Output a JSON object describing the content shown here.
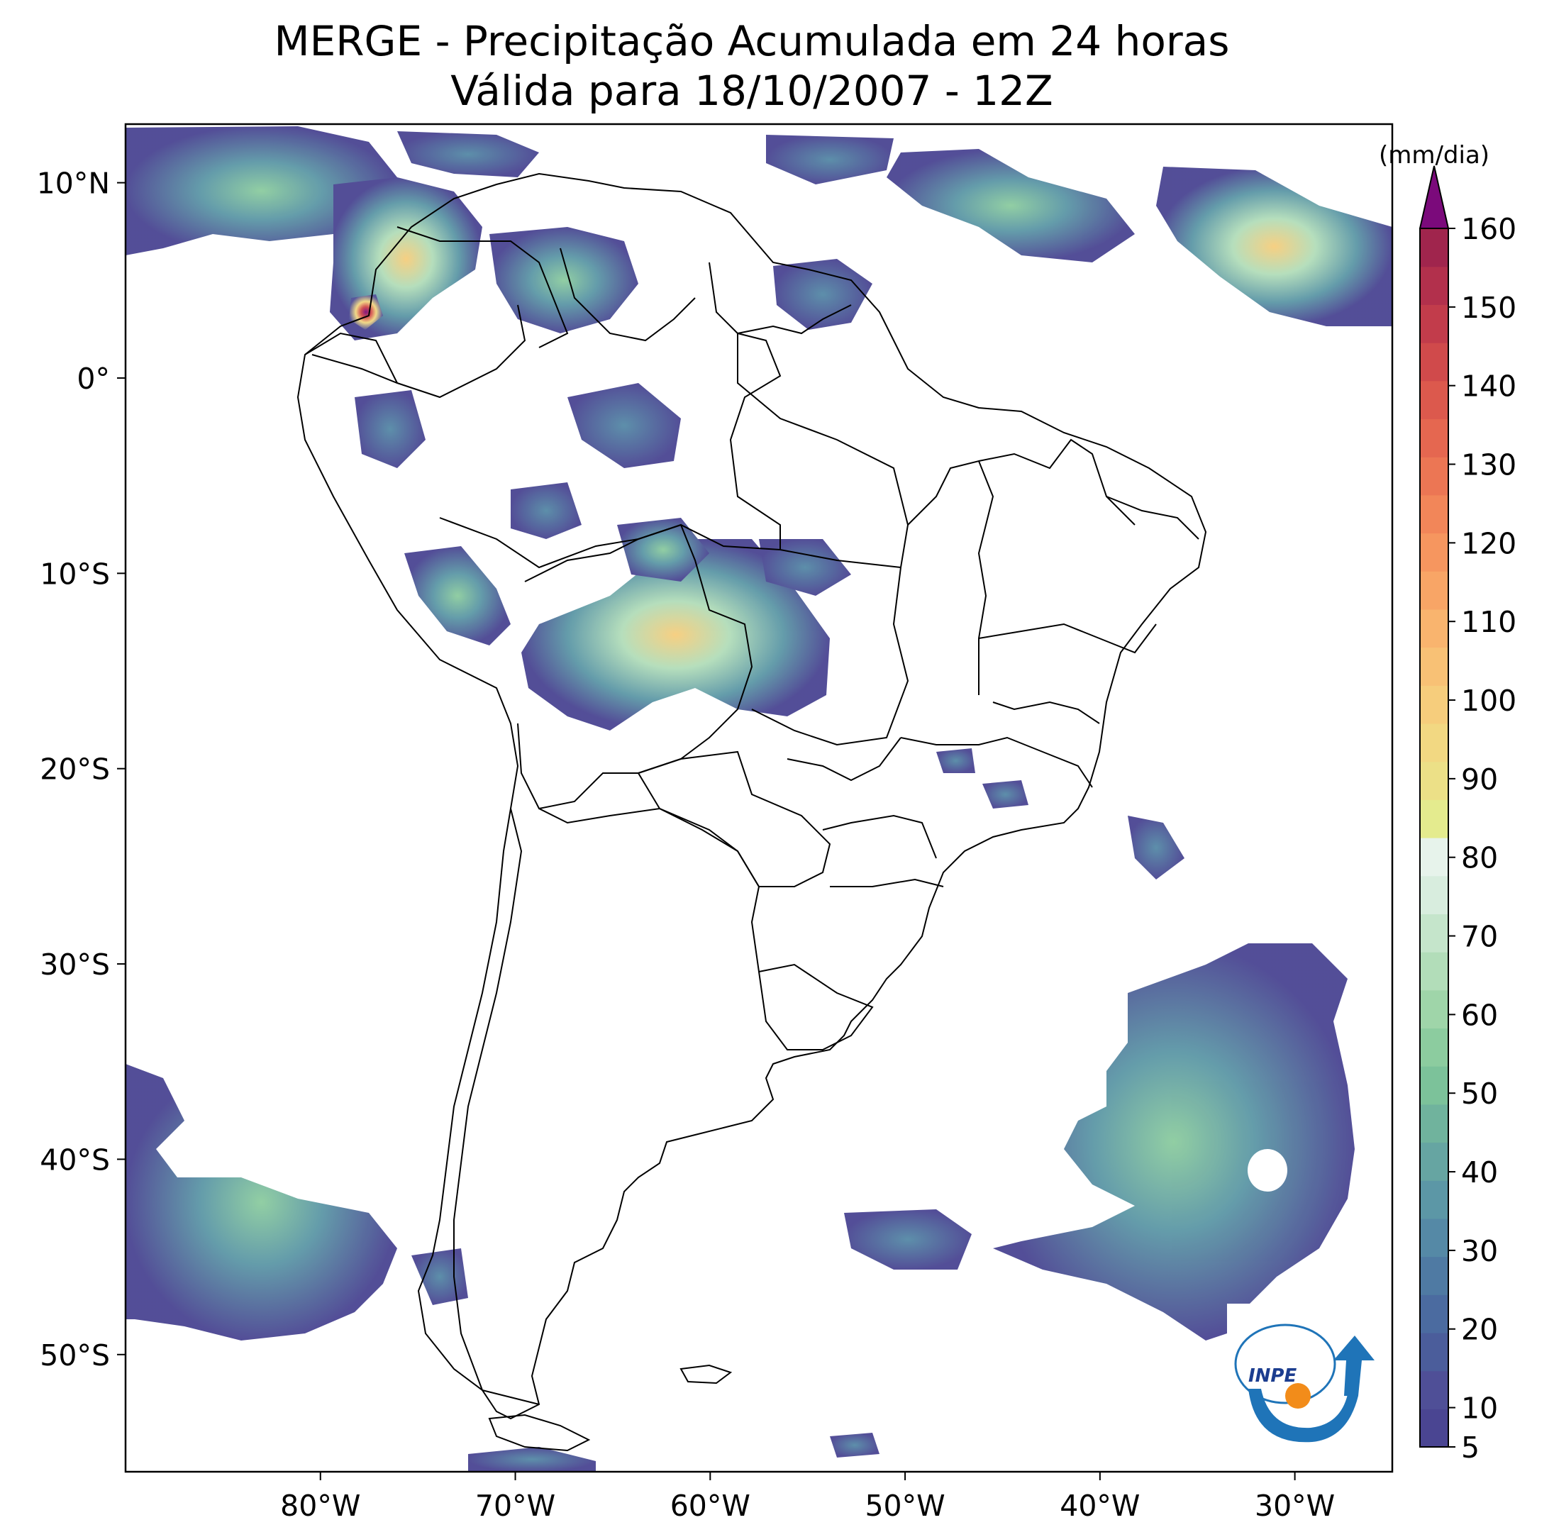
{
  "title": {
    "line1": "MERGE - Precipitação Acumulada em 24 horas",
    "line2": "Válida para 18/10/2007 - 12Z"
  },
  "axes": {
    "lon_min": -90,
    "lon_max": -25,
    "lat_min": -56,
    "lat_max": 13,
    "lon_ticks": [
      {
        "value": -80,
        "label": "80°W"
      },
      {
        "value": -70,
        "label": "70°W"
      },
      {
        "value": -60,
        "label": "60°W"
      },
      {
        "value": -50,
        "label": "50°W"
      },
      {
        "value": -40,
        "label": "40°W"
      },
      {
        "value": -30,
        "label": "30°W"
      }
    ],
    "lat_ticks": [
      {
        "value": 10,
        "label": "10°N"
      },
      {
        "value": 0,
        "label": "0°"
      },
      {
        "value": -10,
        "label": "10°S"
      },
      {
        "value": -20,
        "label": "20°S"
      },
      {
        "value": -30,
        "label": "30°S"
      },
      {
        "value": -40,
        "label": "40°S"
      },
      {
        "value": -50,
        "label": "50°S"
      }
    ]
  },
  "colorbar": {
    "unit": "(mm/dia)",
    "min": 5,
    "max": 160,
    "tick_labels": [
      "5",
      "10",
      "20",
      "30",
      "40",
      "50",
      "60",
      "70",
      "80",
      "90",
      "100",
      "110",
      "120",
      "130",
      "140",
      "150",
      "160"
    ],
    "tick_values": [
      5,
      10,
      20,
      30,
      40,
      50,
      60,
      70,
      80,
      90,
      100,
      110,
      120,
      130,
      140,
      150,
      160
    ],
    "extend_color": "#7b0a7b",
    "colors": [
      "#4a4592",
      "#4f4f97",
      "#4b5d9b",
      "#4b6ba0",
      "#4f7aa3",
      "#5589a6",
      "#5c97a6",
      "#66a5a2",
      "#70b39d",
      "#7cc29a",
      "#8ccc9f",
      "#9fd5a9",
      "#b2ddb9",
      "#c5e5cb",
      "#d8edde",
      "#e7f3eb",
      "#e4eb8e",
      "#ece087",
      "#f2d882",
      "#f6cd7c",
      "#f8c175",
      "#f9b46e",
      "#f8a566",
      "#f6965f",
      "#f28659",
      "#ec7654",
      "#e56750",
      "#dc594d",
      "#d04a4b",
      "#c23c4b",
      "#b2304c",
      "#a0254d"
    ]
  },
  "logo": {
    "text": "INPE",
    "blue": "#1f74b8",
    "orange": "#f28c1a"
  },
  "map_colors": {
    "land_border": "#000000",
    "frame": "#000000"
  }
}
